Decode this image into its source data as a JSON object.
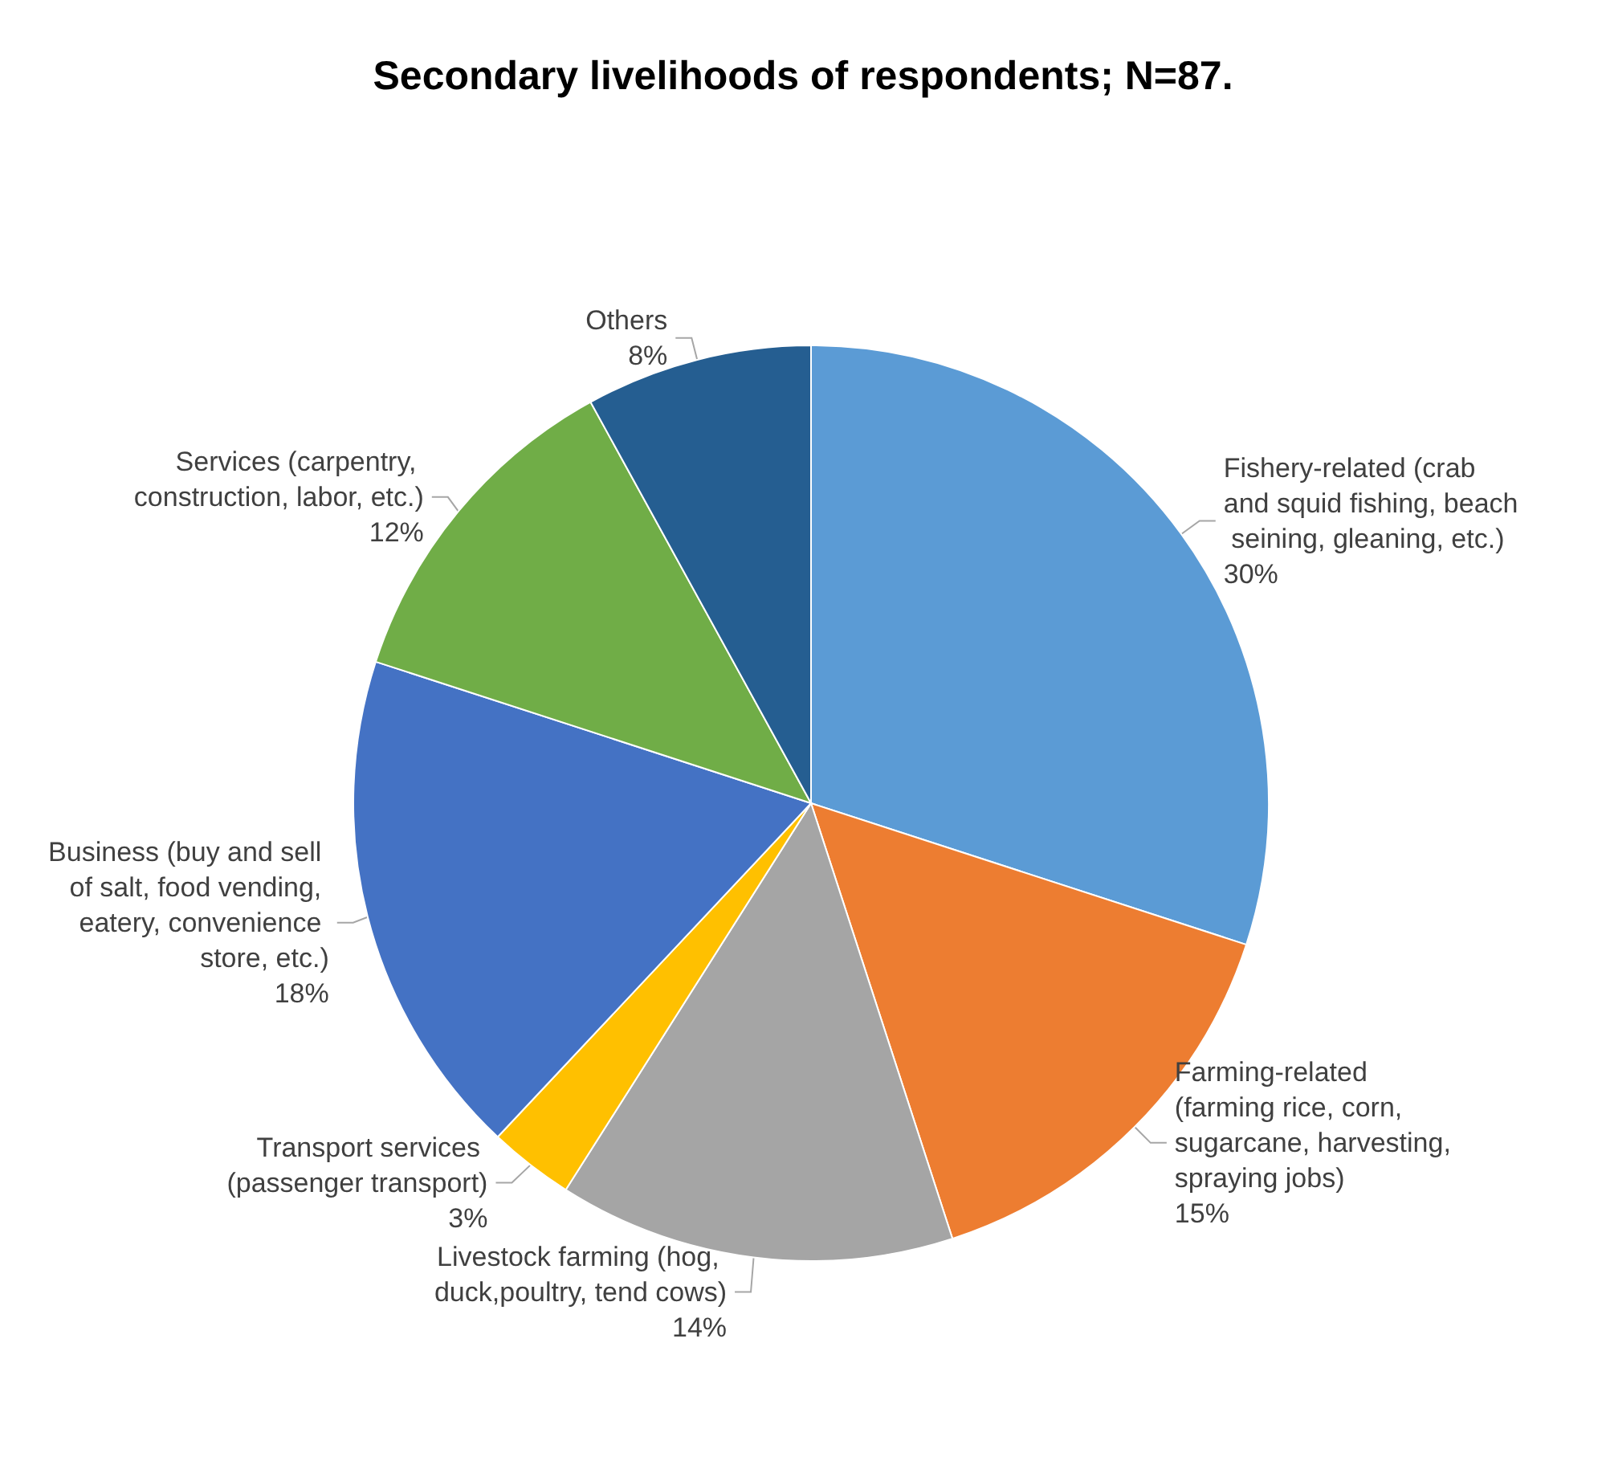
{
  "chart_data": {
    "type": "pie",
    "title": "Secondary livelihoods of respondents; N=87.",
    "categories": [
      "Fishery-related (crab and squid fishing, beach seining, gleaning, etc.)",
      "Farming-related (farming rice, corn, sugarcane, harvesting, spraying jobs)",
      "Livestock farming (hog, duck,poultry, tend cows)",
      "Transport services (passenger transport)",
      "Business (buy and sell of salt, food vending, eatery, convenience store, etc.)",
      "Services (carpentry, construction, labor, etc.)",
      "Others"
    ],
    "values": [
      30,
      15,
      14,
      3,
      18,
      12,
      8
    ],
    "value_labels": [
      "30%",
      "15%",
      "14%",
      "3%",
      "18%",
      "12%",
      "8%"
    ],
    "colors": [
      "#5b9bd5",
      "#ed7d31",
      "#a5a5a5",
      "#ffc000",
      "#4472c4",
      "#70ad47",
      "#255e91"
    ],
    "legend": false
  }
}
